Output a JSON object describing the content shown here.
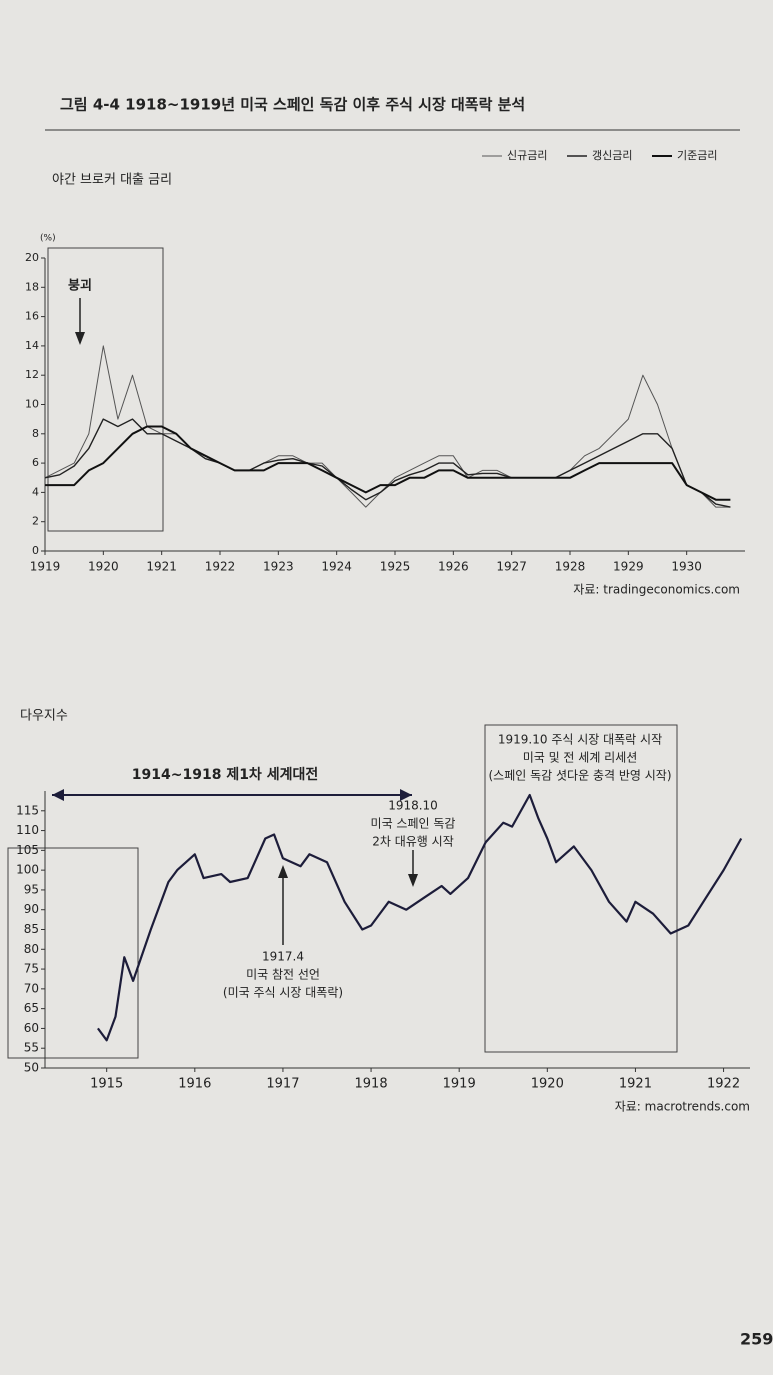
{
  "page": {
    "figure_title": "그림 4-4  1918~1919년 미국 스페인 독감 이후 주식 시장 대폭락 분석",
    "page_number": "259"
  },
  "chart_data": [
    {
      "type": "line",
      "title": "야간 브로커 대출 금리",
      "y_unit": "(%)",
      "xlim": [
        1919,
        1931
      ],
      "xticks": [
        1919,
        1920,
        1921,
        1922,
        1923,
        1924,
        1925,
        1926,
        1927,
        1928,
        1929,
        1930
      ],
      "ylim": [
        0,
        20
      ],
      "yticks": [
        0,
        2,
        4,
        6,
        8,
        10,
        12,
        14,
        16,
        18,
        20
      ],
      "x": [
        1919,
        1919.25,
        1919.5,
        1919.75,
        1920,
        1920.25,
        1920.5,
        1920.75,
        1921,
        1921.25,
        1921.5,
        1921.75,
        1922,
        1922.25,
        1922.5,
        1922.75,
        1923,
        1923.25,
        1923.5,
        1923.75,
        1924,
        1924.25,
        1924.5,
        1924.75,
        1925,
        1925.25,
        1925.5,
        1925.75,
        1926,
        1926.25,
        1926.5,
        1926.75,
        1927,
        1927.25,
        1927.5,
        1927.75,
        1928,
        1928.25,
        1928.5,
        1928.75,
        1929,
        1929.25,
        1929.5,
        1929.75,
        1930,
        1930.25,
        1930.5,
        1930.75
      ],
      "series": [
        {
          "name": "신규금리",
          "color": "#555555",
          "width": 1,
          "values": [
            5,
            5.5,
            6,
            8,
            14,
            9,
            12,
            8.5,
            8,
            8,
            7,
            6.5,
            6,
            5.5,
            5.5,
            6,
            6.5,
            6.5,
            6,
            6,
            5,
            4,
            3,
            4,
            5,
            5.5,
            6,
            6.5,
            6.5,
            5,
            5.5,
            5.5,
            5,
            5,
            5,
            5,
            5.5,
            6.5,
            7,
            8,
            9,
            12,
            10,
            7,
            4.5,
            4,
            3,
            3
          ]
        },
        {
          "name": "갱신금리",
          "color": "#222222",
          "width": 1.4,
          "values": [
            5,
            5.2,
            5.8,
            7,
            9,
            8.5,
            9,
            8,
            8,
            7.5,
            7,
            6.3,
            6,
            5.5,
            5.5,
            6,
            6.2,
            6.3,
            6,
            5.8,
            5,
            4.2,
            3.5,
            4,
            4.8,
            5.2,
            5.5,
            6,
            6,
            5.2,
            5.3,
            5.3,
            5,
            5,
            5,
            5,
            5.5,
            6,
            6.5,
            7,
            7.5,
            8,
            8,
            7,
            4.5,
            4,
            3.2,
            3
          ]
        },
        {
          "name": "기준금리",
          "color": "#111111",
          "width": 2,
          "values": [
            4.5,
            4.5,
            4.5,
            5.5,
            6,
            7,
            8,
            8.5,
            8.5,
            8,
            7,
            6.5,
            6,
            5.5,
            5.5,
            5.5,
            6,
            6,
            6,
            5.5,
            5,
            4.5,
            4,
            4.5,
            4.5,
            5,
            5,
            5.5,
            5.5,
            5,
            5,
            5,
            5,
            5,
            5,
            5,
            5,
            5.5,
            6,
            6,
            6,
            6,
            6,
            6,
            4.5,
            4,
            3.5,
            3.5
          ]
        }
      ],
      "annotations": [
        "붕괴"
      ],
      "source": "자료: tradingeconomics.com"
    },
    {
      "type": "line",
      "title": "다우지수",
      "xlim": [
        1914.3,
        1922.3
      ],
      "xticks": [
        1915,
        1916,
        1917,
        1918,
        1919,
        1920,
        1921,
        1922
      ],
      "ylim": [
        50,
        120
      ],
      "yticks": [
        50,
        55,
        60,
        65,
        70,
        75,
        80,
        85,
        90,
        95,
        100,
        105,
        110,
        115
      ],
      "x": [
        1914.9,
        1915,
        1915.1,
        1915.2,
        1915.3,
        1915.5,
        1915.7,
        1915.8,
        1916,
        1916.1,
        1916.3,
        1916.4,
        1916.6,
        1916.8,
        1916.9,
        1917,
        1917.2,
        1917.3,
        1917.5,
        1917.7,
        1917.9,
        1918,
        1918.2,
        1918.4,
        1918.6,
        1918.8,
        1918.9,
        1919.1,
        1919.3,
        1919.5,
        1919.6,
        1919.8,
        1919.9,
        1920,
        1920.1,
        1920.3,
        1920.5,
        1920.7,
        1920.9,
        1921,
        1921.2,
        1921.4,
        1921.6,
        1921.8,
        1922,
        1922.2
      ],
      "series": [
        {
          "name": "다우지수",
          "color": "#1d1d3a",
          "width": 2.2,
          "values": [
            60,
            57,
            63,
            78,
            72,
            85,
            97,
            100,
            104,
            98,
            99,
            97,
            98,
            108,
            109,
            103,
            101,
            104,
            102,
            92,
            85,
            86,
            92,
            90,
            93,
            96,
            94,
            98,
            107,
            112,
            111,
            119,
            113,
            108,
            102,
            106,
            100,
            92,
            87,
            92,
            89,
            84,
            86,
            93,
            100,
            108
          ]
        }
      ],
      "annotations": [
        [
          "1914~1918 제1차 세계대전"
        ],
        [
          "1918.10",
          "미국 스페인 독감",
          "2차 대유행 시작"
        ],
        [
          "1917.4",
          "미국 참전 선언",
          "(미국 주식 시장 대폭락)"
        ],
        [
          "1919.10 주식 시장 대폭락 시작",
          "미국 및 전 세계 리세션",
          "(스페인 독감 셧다운 충격 반영 시작)"
        ]
      ],
      "source": "자료: macrotrends.com"
    }
  ]
}
